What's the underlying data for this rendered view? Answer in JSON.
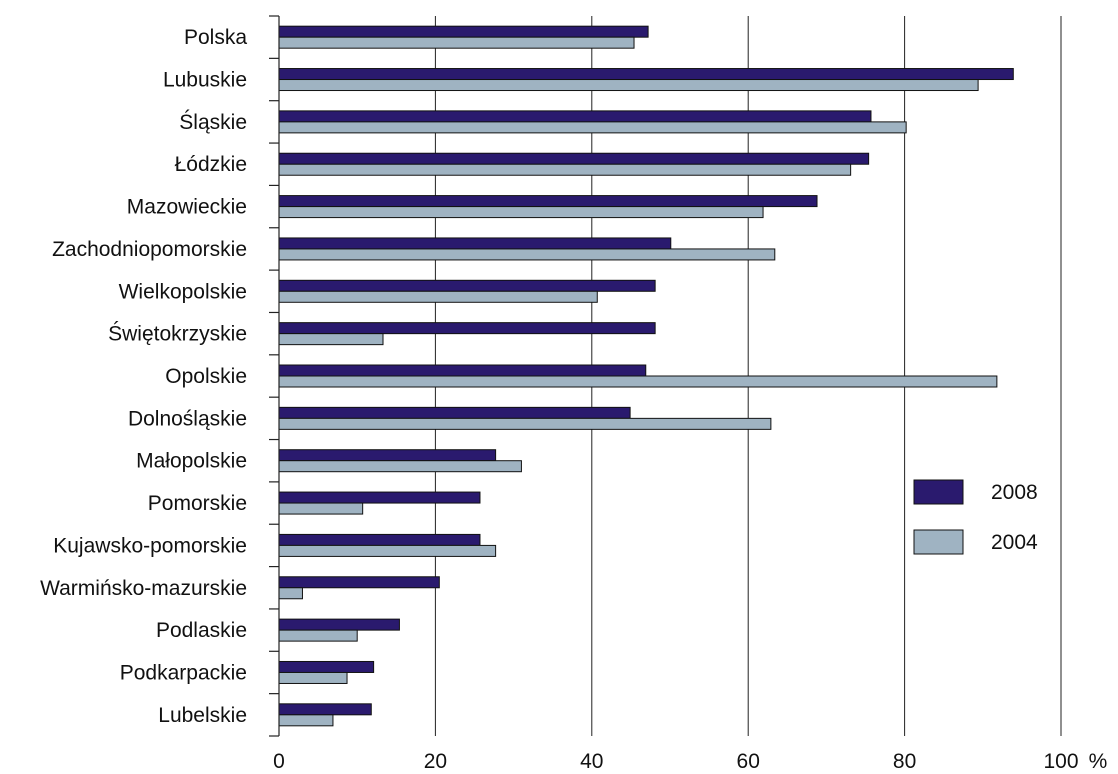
{
  "chart_data": {
    "type": "bar",
    "orientation": "horizontal",
    "categories": [
      "Polska",
      "Lubuskie",
      "Śląskie",
      "Łódzkie",
      "Mazowieckie",
      "Zachodniopomorskie",
      "Wielkopolskie",
      "Świętokrzyskie",
      "Opolskie",
      "Dolnośląskie",
      "Małopolskie",
      "Pomorskie",
      "Kujawsko-pomorskie",
      "Warmińsko-mazurskie",
      "Podlaskie",
      "Podkarpackie",
      "Lubelskie"
    ],
    "series": [
      {
        "name": "2008",
        "color": "#2a1a6e",
        "values": [
          47.2,
          93.9,
          75.7,
          75.4,
          68.8,
          50.1,
          48.1,
          48.1,
          46.9,
          44.9,
          27.7,
          25.7,
          25.7,
          20.5,
          15.4,
          12.1,
          11.8
        ]
      },
      {
        "name": "2004",
        "color": "#9fb3c2",
        "values": [
          45.4,
          89.4,
          80.2,
          73.1,
          61.9,
          63.4,
          40.7,
          13.3,
          91.8,
          62.9,
          31.0,
          10.7,
          27.7,
          3.0,
          10.0,
          8.7,
          6.9
        ]
      }
    ],
    "xlim": [
      0,
      100
    ],
    "xticks": [
      0,
      20,
      40,
      60,
      80,
      100
    ],
    "xunit": "%",
    "grid": "vertical",
    "legend": "right-lower",
    "title": "",
    "xlabel": "",
    "ylabel": ""
  }
}
